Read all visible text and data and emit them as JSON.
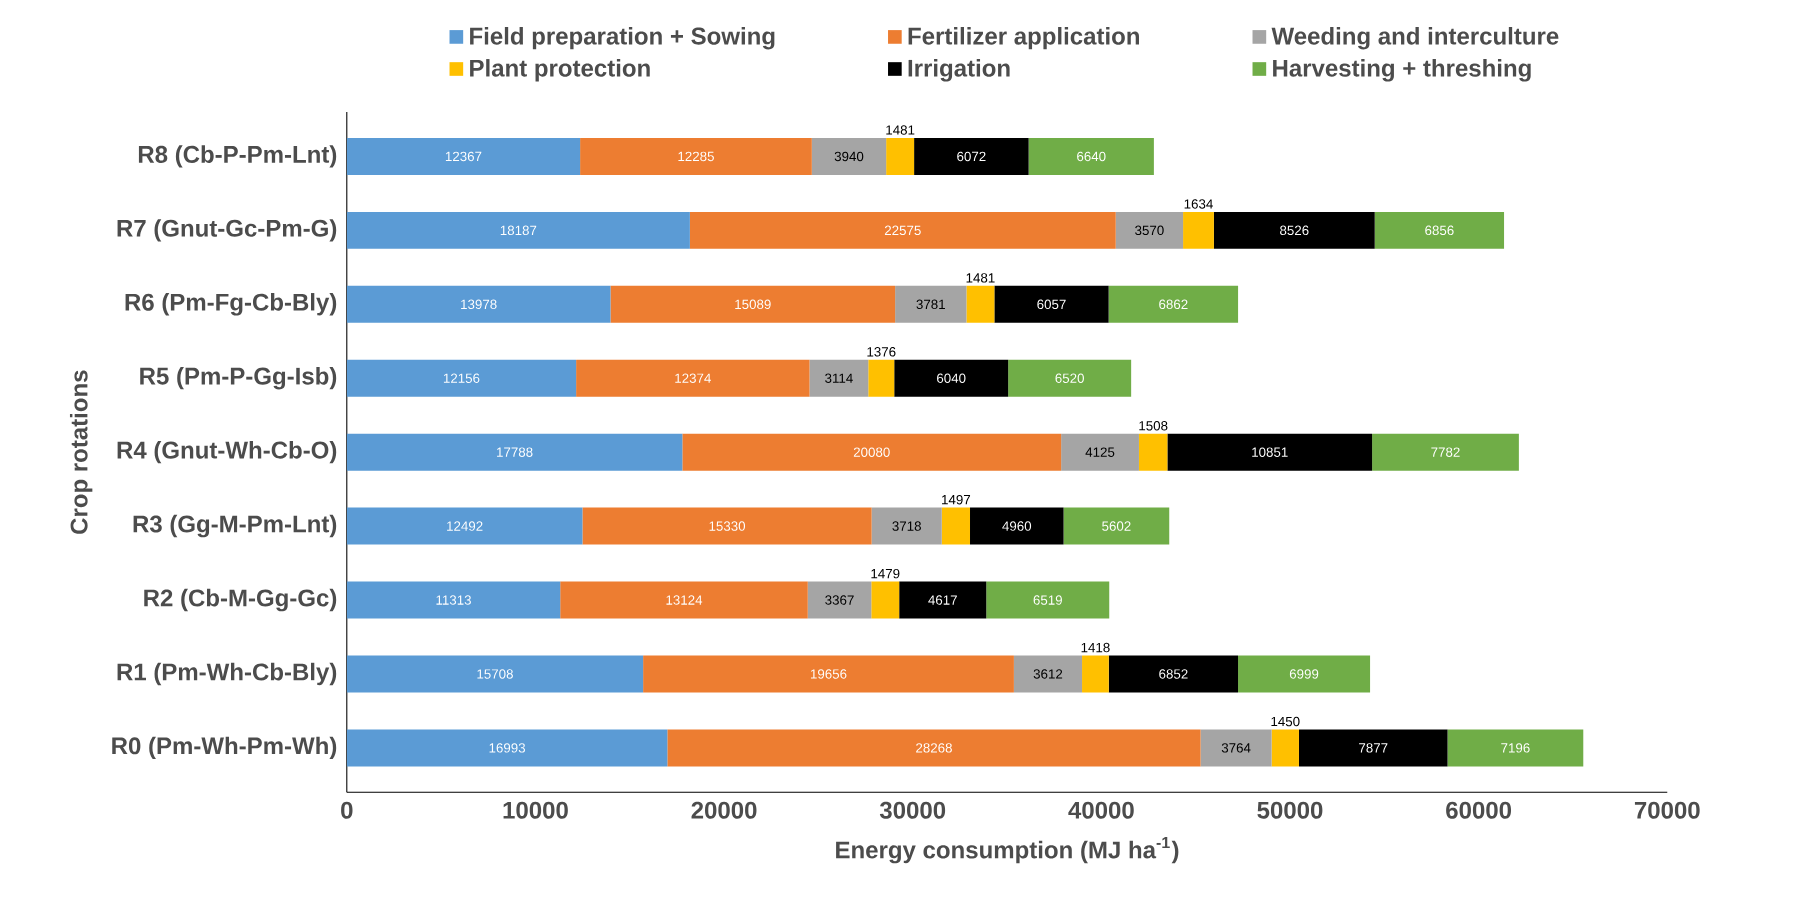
{
  "chart_data": {
    "type": "bar",
    "orientation": "horizontal",
    "stacked": true,
    "categories": [
      "R8 (Cb-P-Pm-Lnt)",
      "R7 (Gnut-Gc-Pm-G)",
      "R6 (Pm-Fg-Cb-Bly)",
      "R5 (Pm-P-Gg-Isb)",
      "R4 (Gnut-Wh-Cb-O)",
      "R3 (Gg-M-Pm-Lnt)",
      "R2 (Cb-M-Gg-Gc)",
      "R1 (Pm-Wh-Cb-Bly)",
      "R0 (Pm-Wh-Pm-Wh)"
    ],
    "series": [
      {
        "name": "Field preparation + Sowing",
        "color": "#5b9bd5",
        "values": [
          12367,
          18187,
          13978,
          12156,
          17788,
          12492,
          11313,
          15708,
          16993
        ]
      },
      {
        "name": "Fertilizer application",
        "color": "#ed7d31",
        "values": [
          12285,
          22575,
          15089,
          12374,
          20080,
          15330,
          13124,
          19656,
          28268
        ]
      },
      {
        "name": "Weeding and interculture",
        "color": "#a5a5a5",
        "values": [
          3940,
          3570,
          3781,
          3114,
          4125,
          3718,
          3367,
          3612,
          3764
        ]
      },
      {
        "name": "Plant protection",
        "color": "#ffc000",
        "values": [
          1481,
          1634,
          1481,
          1376,
          1508,
          1497,
          1479,
          1418,
          1450
        ]
      },
      {
        "name": "Irrigation",
        "color": "#000000",
        "values": [
          6072,
          8526,
          6057,
          6040,
          10851,
          4960,
          4617,
          6852,
          7877
        ]
      },
      {
        "name": "Harvesting + threshing",
        "color": "#70ad47",
        "values": [
          6640,
          6856,
          6862,
          6520,
          7782,
          5602,
          6519,
          6999,
          7196
        ]
      }
    ],
    "xlim": [
      0,
      70000
    ],
    "xticks": [
      0,
      10000,
      20000,
      30000,
      40000,
      50000,
      60000,
      70000
    ],
    "xlabel": "Energy consumption (MJ ha$^{-1}$)",
    "ylabel": "Crop rotations",
    "data_labels": true,
    "legend": "top",
    "grid": false
  }
}
